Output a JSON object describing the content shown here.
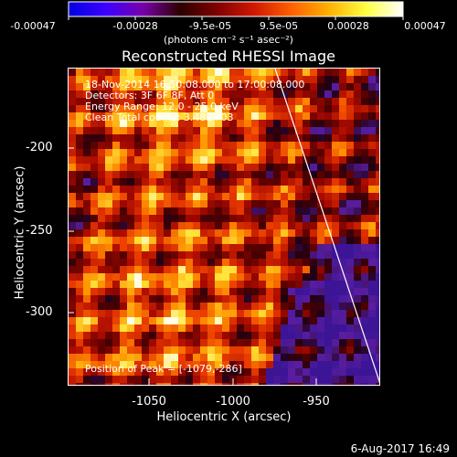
{
  "colors": {
    "accent": "#ffffff",
    "background": "#000000"
  },
  "colorbar": {
    "ticks": [
      "-0.00047",
      "-0.00028",
      "-9.5e-05",
      "9.5e-05",
      "0.00028",
      "0.00047"
    ],
    "unit": "(photons cm⁻² s⁻¹ asec⁻²)",
    "gradient": [
      "#0000e0",
      "#3d00ff",
      "#7700aa",
      "#2b0000",
      "#800000",
      "#d01800",
      "#ff6000",
      "#ffb000",
      "#ffff40",
      "#ffffff"
    ]
  },
  "title": "Reconstructed RHESSI Image",
  "info": {
    "line1": "18-Nov-2014 16:50:08.000 to 17:00:08.000",
    "line2": "Detectors: 3F 6F 8F, Att 0",
    "line3": "Energy Range: 12.0 - 25.0 keV",
    "line4": "Clean    Total counts: 3.48E+03",
    "peak": "Position of Peak = [-1079,-286]"
  },
  "axes": {
    "xlabel": "Heliocentric X (arcsec)",
    "ylabel": "Heliocentric Y (arcsec)",
    "xticks": [
      "-1050",
      "-1000",
      "-950"
    ],
    "yticks": [
      "-200",
      "-250",
      "-300"
    ]
  },
  "footer": "6-Aug-2017 16:49"
}
